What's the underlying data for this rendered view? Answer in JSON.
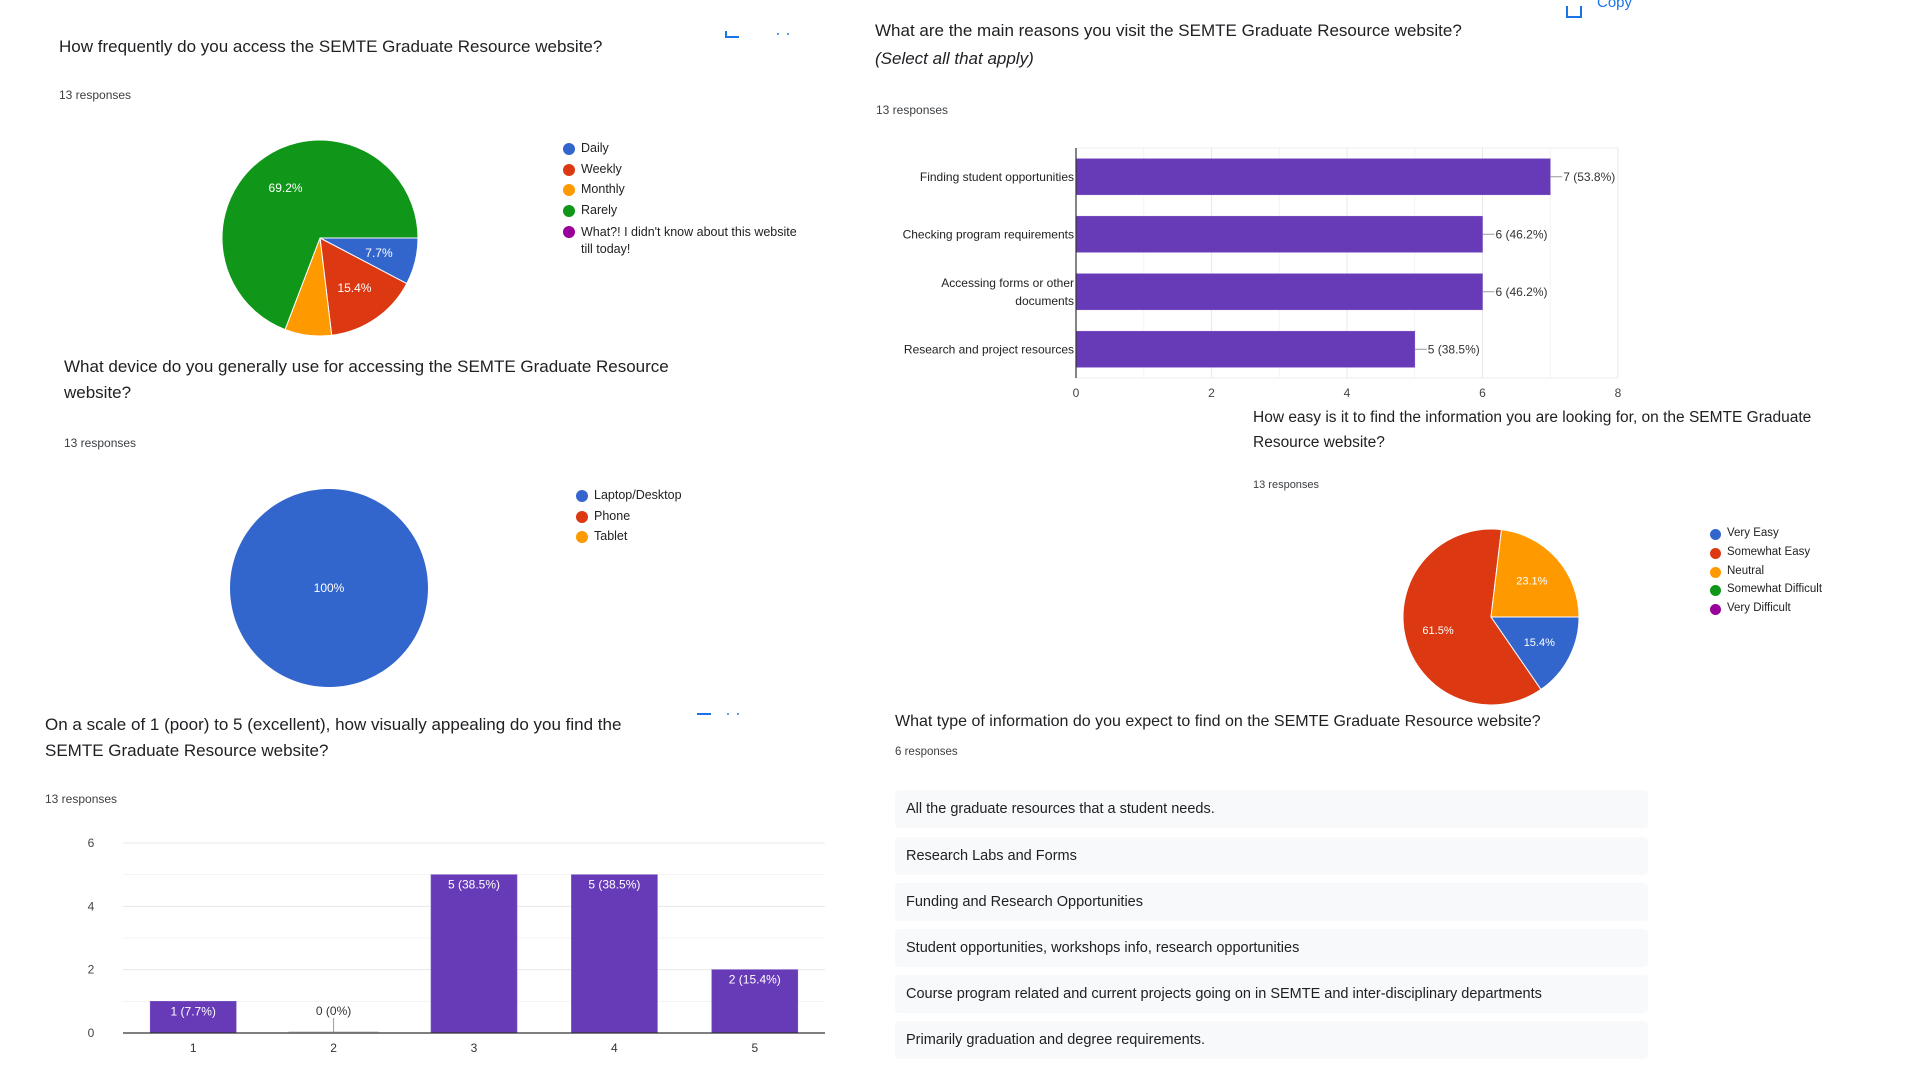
{
  "toolbar": {
    "copy_label": "Copy"
  },
  "questions": {
    "frequency": {
      "title": "How frequently do you access the SEMTE Graduate Resource website?",
      "responses": "13 responses"
    },
    "reasons": {
      "title": "What are the main reasons you visit the SEMTE Graduate Resource website?",
      "subtitle": "(Select all that apply)",
      "responses": "13 responses"
    },
    "device": {
      "title_line1": "What device do you generally use for accessing the SEMTE Graduate Resource",
      "title_line2": "website?",
      "responses": "13 responses"
    },
    "ease": {
      "title_line1": "How easy is it to find the information you are looking for, on the SEMTE Graduate",
      "title_line2": "Resource website?",
      "responses": "13 responses"
    },
    "visual": {
      "title_line1": "On a scale of 1 (poor) to 5 (excellent), how visually appealing do you find the",
      "title_line2": "SEMTE Graduate Resource website?",
      "responses": "13 responses"
    },
    "expect": {
      "title": "What type of information do you expect to find on the SEMTE Graduate Resource website?",
      "responses": "6 responses",
      "answers": [
        "All the graduate resources that a student needs.",
        "Research Labs and Forms",
        "Funding and Research Opportunities",
        "Student opportunities, workshops info, research opportunities",
        "Course program related and current projects going on in SEMTE and inter-disciplinary departments",
        "Primarily graduation and degree requirements."
      ]
    }
  },
  "chart_data": [
    {
      "id": "frequency",
      "type": "pie",
      "title": "How frequently do you access the SEMTE Graduate Resource website?",
      "categories": [
        "Daily",
        "Weekly",
        "Monthly",
        "Rarely",
        "What?! I didn't know about this website till today!"
      ],
      "values": [
        7.7,
        15.4,
        7.7,
        69.2,
        0
      ],
      "data_labels": [
        "7.7%",
        "15.4%",
        "",
        "69.2%",
        ""
      ],
      "colors": [
        "#3366cc",
        "#dc3912",
        "#ff9900",
        "#109618",
        "#990099"
      ],
      "legend": "right"
    },
    {
      "id": "reasons",
      "type": "bar",
      "orientation": "horizontal",
      "title": "What are the main reasons you visit the SEMTE Graduate Resource website?",
      "categories": [
        "Finding student opportunities",
        "Checking program requirements",
        "Accessing forms or other documents",
        "Research and project resources"
      ],
      "values": [
        7,
        6,
        6,
        5
      ],
      "data_labels": [
        "7 (53.8%)",
        "6 (46.2%)",
        "6 (46.2%)",
        "5 (38.5%)"
      ],
      "xlim": [
        0,
        8
      ],
      "xticks": [
        "0",
        "2",
        "4",
        "6",
        "8"
      ],
      "color": "#673ab7",
      "grid": true
    },
    {
      "id": "device",
      "type": "pie",
      "title": "What device do you generally use for accessing the SEMTE Graduate Resource website?",
      "categories": [
        "Laptop/Desktop",
        "Phone",
        "Tablet"
      ],
      "values": [
        100,
        0,
        0
      ],
      "data_labels": [
        "100%",
        "",
        ""
      ],
      "colors": [
        "#3366cc",
        "#dc3912",
        "#ff9900"
      ],
      "legend": "right"
    },
    {
      "id": "ease",
      "type": "pie",
      "title": "How easy is it to find the information you are looking for, on the SEMTE Graduate Resource website?",
      "categories": [
        "Very Easy",
        "Somewhat Easy",
        "Neutral",
        "Somewhat Difficult",
        "Very Difficult"
      ],
      "values": [
        15.4,
        61.5,
        23.1,
        0,
        0
      ],
      "data_labels": [
        "15.4%",
        "61.5%",
        "23.1%",
        "",
        ""
      ],
      "colors": [
        "#3366cc",
        "#dc3912",
        "#ff9900",
        "#109618",
        "#990099"
      ],
      "legend": "right"
    },
    {
      "id": "visual",
      "type": "bar",
      "orientation": "vertical",
      "title": "On a scale of 1 (poor) to 5 (excellent), how visually appealing do you find the SEMTE Graduate Resource website?",
      "categories": [
        "1",
        "2",
        "3",
        "4",
        "5"
      ],
      "values": [
        1,
        0,
        5,
        5,
        2
      ],
      "data_labels": [
        "1 (7.7%)",
        "0 (0%)",
        "5 (38.5%)",
        "5 (38.5%)",
        "2 (15.4%)"
      ],
      "ylim": [
        0,
        6
      ],
      "yticks": [
        "0",
        "2",
        "4",
        "6"
      ],
      "color": "#673ab7",
      "grid": true
    }
  ]
}
